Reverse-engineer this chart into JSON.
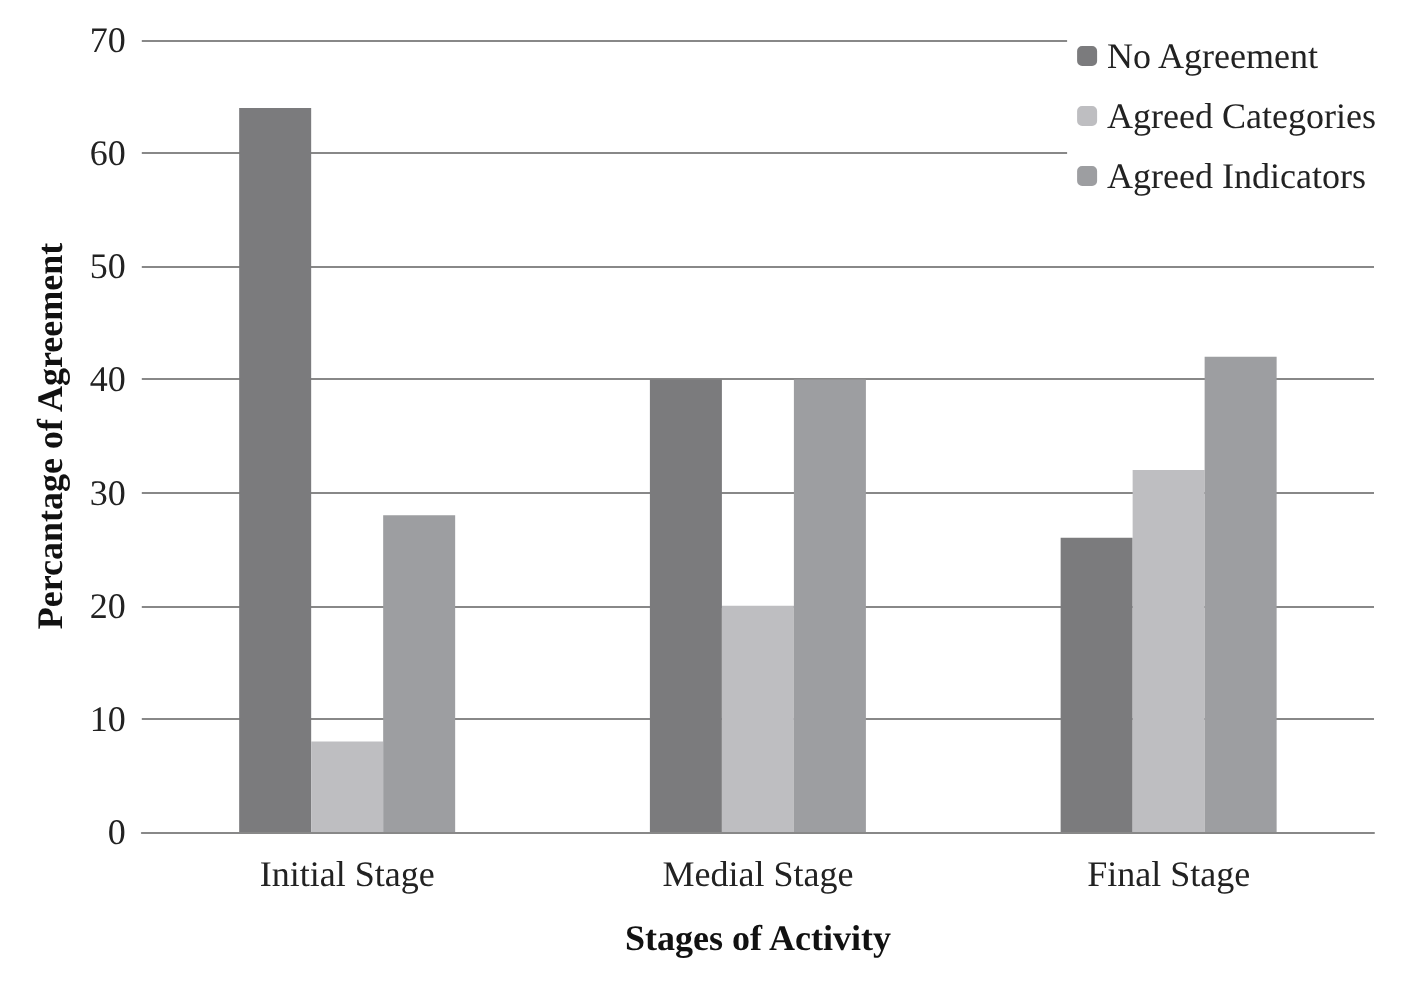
{
  "chart_data": {
    "type": "bar",
    "xlabel": "Stages of Activity",
    "ylabel": "Percantage of Agreement",
    "categories": [
      "Initial Stage",
      "Medial Stage",
      "Final Stage"
    ],
    "series": [
      {
        "name": "No Agreement",
        "color": "#7b7b7d",
        "values": [
          64,
          40,
          26
        ]
      },
      {
        "name": "Agreed Categories",
        "color": "#bebec1",
        "values": [
          8,
          20,
          32
        ]
      },
      {
        "name": "Agreed Indicators",
        "color": "#9d9ea1",
        "values": [
          28,
          40,
          42
        ]
      }
    ],
    "ylim": [
      0,
      70
    ],
    "yticks": [
      0,
      10,
      20,
      30,
      40,
      50,
      60,
      70
    ],
    "grid": "y",
    "legend": "top right"
  }
}
